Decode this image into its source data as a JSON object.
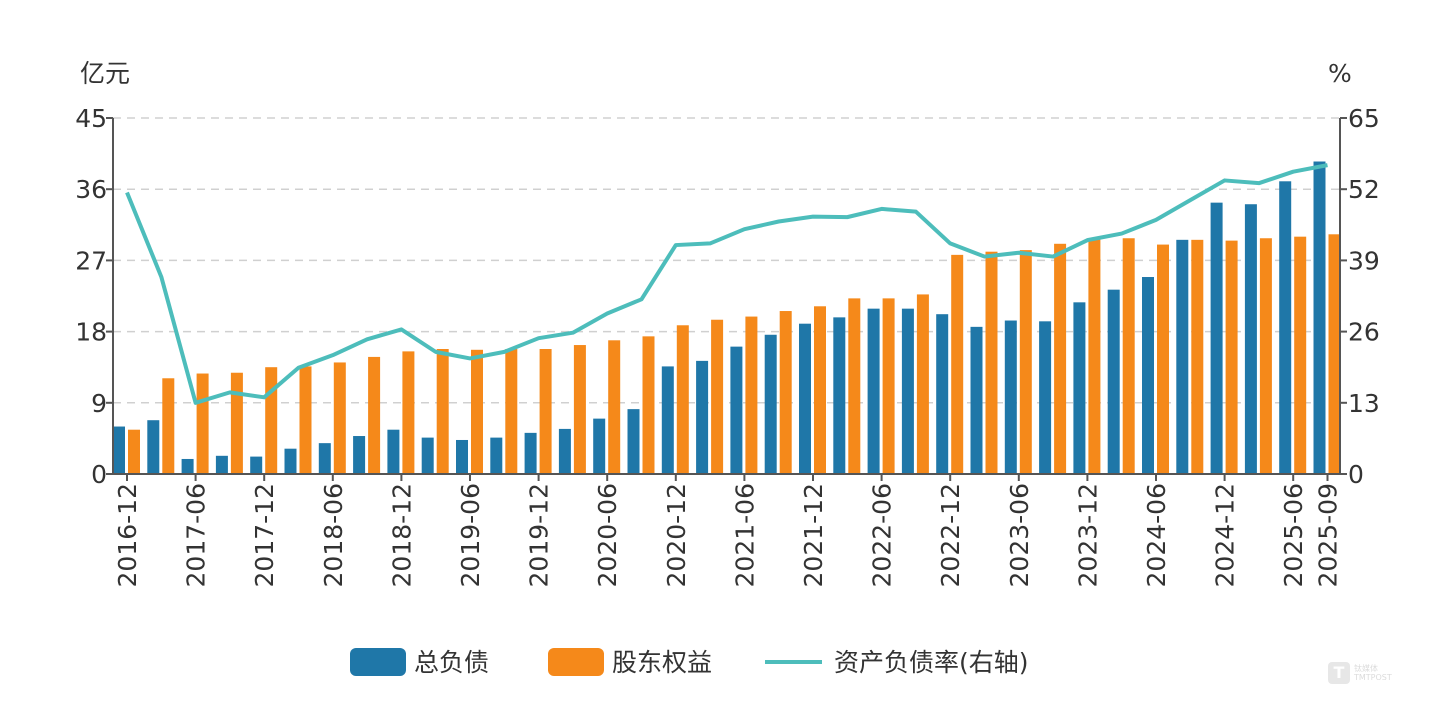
{
  "chart_data": {
    "type": "bar+line",
    "left_unit": "亿元",
    "right_unit": "%",
    "left_axis": {
      "min": 0,
      "max": 45,
      "ticks": [
        "0",
        "9",
        "18",
        "27",
        "36",
        "45"
      ]
    },
    "right_axis": {
      "min": 0,
      "max": 65,
      "ticks": [
        "0",
        "13",
        "26",
        "39",
        "52",
        "65"
      ]
    },
    "grid": true,
    "legend_position": "bottom",
    "categories": [
      "2016-12",
      "2017-03",
      "2017-06",
      "2017-09",
      "2017-12",
      "2018-03",
      "2018-06",
      "2018-09",
      "2018-12",
      "2019-03",
      "2019-06",
      "2019-09",
      "2019-12",
      "2020-03",
      "2020-06",
      "2020-09",
      "2020-12",
      "2021-03",
      "2021-06",
      "2021-09",
      "2021-12",
      "2022-03",
      "2022-06",
      "2022-09",
      "2022-12",
      "2023-03",
      "2023-06",
      "2023-09",
      "2023-12",
      "2024-03",
      "2024-06",
      "2024-09",
      "2024-12",
      "2025-03",
      "2025-06",
      "2025-09"
    ],
    "x_tick_labels": [
      "2016-12",
      "2017-06",
      "2017-12",
      "2018-06",
      "2018-12",
      "2019-06",
      "2019-12",
      "2020-06",
      "2020-12",
      "2021-06",
      "2021-12",
      "2022-06",
      "2022-12",
      "2023-06",
      "2023-12",
      "2024-06",
      "2024-12",
      "2025-06",
      "2025-09"
    ],
    "series": [
      {
        "name": "总负债",
        "type": "bar",
        "axis": "left",
        "color": "#1f77a8",
        "values": [
          6.0,
          6.8,
          1.9,
          2.3,
          2.2,
          3.2,
          3.9,
          4.8,
          5.6,
          4.6,
          4.3,
          4.6,
          5.2,
          5.7,
          7.0,
          8.2,
          13.6,
          14.3,
          16.1,
          17.6,
          19.0,
          19.8,
          20.9,
          20.9,
          20.2,
          18.6,
          19.4,
          19.3,
          21.7,
          23.3,
          24.9,
          29.6,
          34.3,
          34.1,
          37.0,
          39.5
        ]
      },
      {
        "name": "股东权益",
        "type": "bar",
        "axis": "left",
        "color": "#f5891a",
        "values": [
          5.6,
          12.1,
          12.7,
          12.8,
          13.5,
          13.6,
          14.1,
          14.8,
          15.5,
          15.8,
          15.7,
          15.8,
          15.8,
          16.3,
          16.9,
          17.4,
          18.8,
          19.5,
          19.9,
          20.6,
          21.2,
          22.2,
          22.2,
          22.7,
          27.7,
          28.1,
          28.3,
          29.1,
          29.7,
          29.8,
          29.0,
          29.6,
          29.5,
          29.8,
          30.0,
          30.3
        ]
      },
      {
        "name": "资产负债率(右轴)",
        "type": "line",
        "axis": "right",
        "color": "#4dbdbb",
        "values": [
          51.4,
          36.0,
          13.0,
          14.9,
          14.0,
          19.4,
          21.7,
          24.6,
          26.4,
          22.3,
          21.1,
          22.3,
          24.8,
          25.8,
          29.3,
          31.9,
          41.8,
          42.1,
          44.7,
          46.1,
          47.0,
          46.9,
          48.4,
          47.9,
          42.1,
          39.7,
          40.4,
          39.7,
          42.7,
          43.9,
          46.4,
          50.0,
          53.6,
          53.1,
          55.2,
          56.4
        ]
      }
    ]
  },
  "watermark": {
    "text": "钛媒体 TMTPOST"
  }
}
